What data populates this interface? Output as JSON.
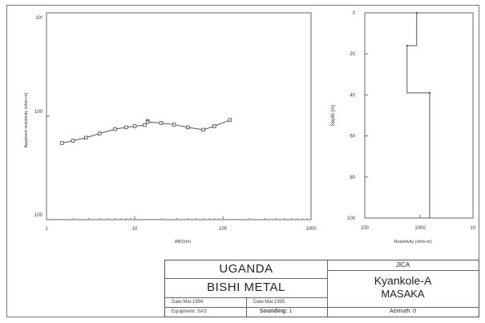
{
  "chart_data": [
    {
      "type": "line",
      "scale": "log-log",
      "title": "",
      "xlabel": "AB/2(m)",
      "ylabel": "Apparent resistivity (ohm-m)",
      "x_ticks": [
        "1",
        "10",
        "100",
        "1000"
      ],
      "y_ticks": [
        "10³",
        "100",
        "100"
      ],
      "xlim": [
        1,
        1000
      ],
      "ylim": [
        10,
        1000
      ],
      "series": [
        {
          "x": [
            1.5,
            2,
            2.8,
            4,
            6,
            8,
            10,
            13,
            14
          ],
          "y": [
            55,
            58,
            62,
            68,
            75,
            78,
            80,
            82,
            90
          ]
        },
        {
          "x": [
            14,
            20,
            28,
            40,
            60,
            80,
            120
          ],
          "y": [
            88,
            86,
            83,
            78,
            74,
            80,
            92
          ]
        }
      ]
    },
    {
      "type": "line",
      "subtype": "step-profile",
      "xlabel": "Resistivity (ohm-m)",
      "ylabel": "Depth (m)",
      "x_ticks": [
        "100",
        "1000",
        "10"
      ],
      "y_ticks": [
        "0",
        "20",
        "40",
        "60",
        "80",
        "100"
      ],
      "xscale": "log",
      "xlim": [
        10,
        10000
      ],
      "ylim": [
        0,
        100
      ],
      "layers": [
        {
          "resistivity": 500,
          "top": 0,
          "bottom": 16
        },
        {
          "resistivity": 300,
          "top": 16,
          "bottom": 39
        },
        {
          "resistivity": 1000,
          "top": 39,
          "bottom": 100
        }
      ]
    }
  ],
  "title_block": {
    "country": "UGANDA",
    "project": "BISHI METAL",
    "agency": "JICA",
    "site_line1": "Kyankole-A",
    "site_line2": "MASAKA",
    "field1": "Date:Mar.1994",
    "field2": "Date:Mar.1995",
    "field3": "Equipment: SAS",
    "sounding_label": "Sounding:",
    "sounding_value": "1",
    "azimuth": "Azimuth: 0"
  }
}
